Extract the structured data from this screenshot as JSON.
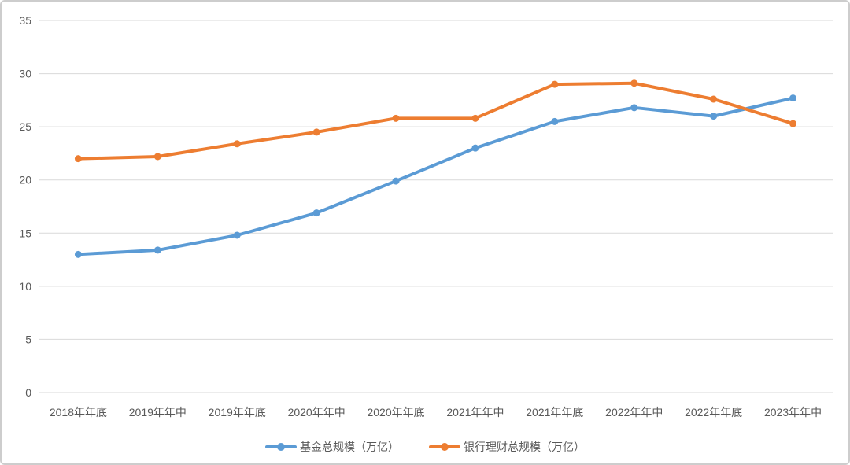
{
  "figure": {
    "background": "#FFFFFF",
    "border_color": "#CDCDCD"
  },
  "chart_data": {
    "type": "line",
    "title": "",
    "xlabel": "",
    "ylabel": "",
    "categories": [
      "2018年年底",
      "2019年年中",
      "2019年年底",
      "2020年年中",
      "2020年年底",
      "2021年年中",
      "2021年年底",
      "2022年年中",
      "2022年年底",
      "2023年年中"
    ],
    "series": [
      {
        "name": "基金总规模（万亿）",
        "color": "#5B9BD5",
        "marker": "circle",
        "values": [
          13.0,
          13.4,
          14.8,
          16.9,
          19.9,
          23.0,
          25.5,
          26.8,
          26.0,
          27.7
        ]
      },
      {
        "name": "银行理财总规模（万亿）",
        "color": "#ED7D31",
        "marker": "circle",
        "values": [
          22.0,
          22.2,
          23.4,
          24.5,
          25.8,
          25.8,
          29.0,
          29.1,
          27.6,
          25.3
        ]
      }
    ],
    "ylim": [
      0,
      35
    ],
    "yticks": [
      0,
      5,
      10,
      15,
      20,
      25,
      30,
      35
    ],
    "grid": "horizontal",
    "gridline_color": "#D9D9D9",
    "axis_text_color": "#595959",
    "legend_position": "bottom"
  }
}
